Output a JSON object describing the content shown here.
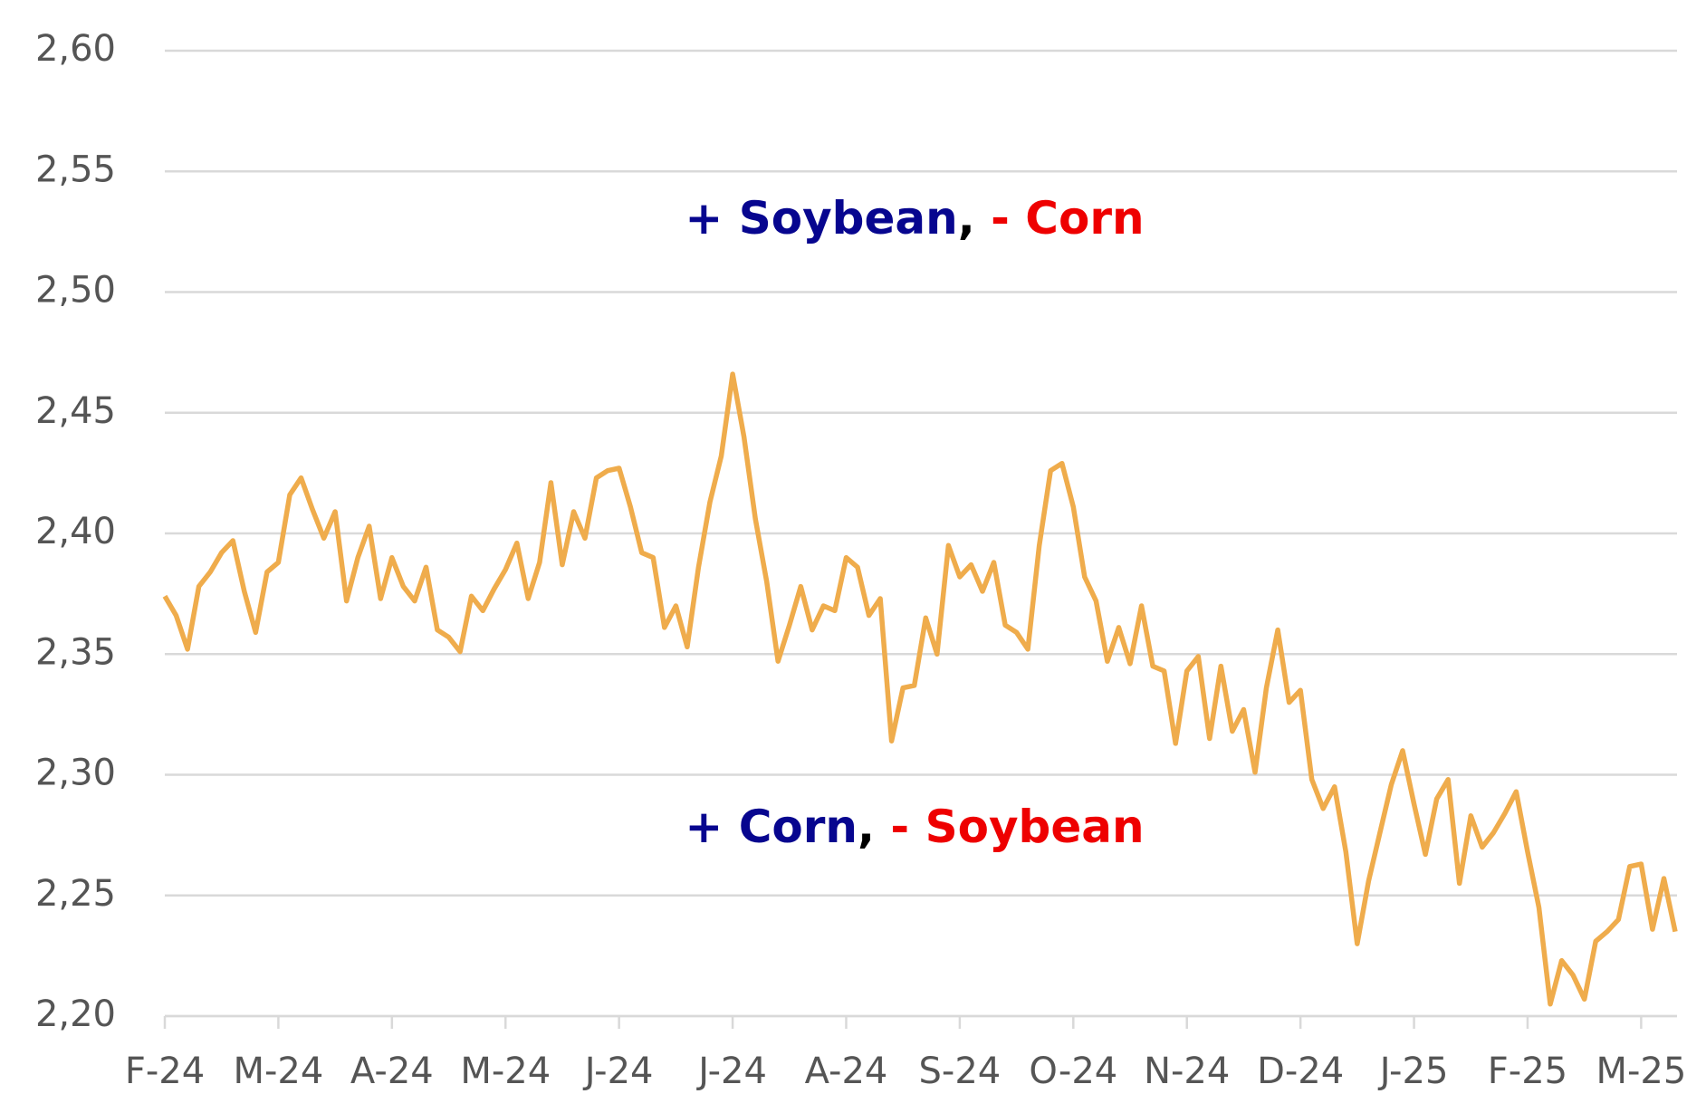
{
  "chart_data": {
    "type": "line",
    "categories": [
      "F-24",
      null,
      null,
      null,
      null,
      null,
      null,
      null,
      null,
      null,
      "M-24",
      null,
      null,
      null,
      null,
      null,
      null,
      null,
      null,
      null,
      "A-24",
      null,
      null,
      null,
      null,
      null,
      null,
      null,
      null,
      null,
      "M-24",
      null,
      null,
      null,
      null,
      null,
      null,
      null,
      null,
      null,
      "J-24",
      null,
      null,
      null,
      null,
      null,
      null,
      null,
      null,
      null,
      "J-24",
      null,
      null,
      null,
      null,
      null,
      null,
      null,
      null,
      null,
      "A-24",
      null,
      null,
      null,
      null,
      null,
      null,
      null,
      null,
      null,
      "S-24",
      null,
      null,
      null,
      null,
      null,
      null,
      null,
      null,
      null,
      "O-24",
      null,
      null,
      null,
      null,
      null,
      null,
      null,
      null,
      null,
      "N-24",
      null,
      null,
      null,
      null,
      null,
      null,
      null,
      null,
      null,
      "D-24",
      null,
      null,
      null,
      null,
      null,
      null,
      null,
      null,
      null,
      "J-25",
      null,
      null,
      null,
      null,
      null,
      null,
      null,
      null,
      null,
      "F-25",
      null,
      null,
      null,
      null,
      null,
      null,
      null,
      null,
      null,
      "M-25",
      null,
      null,
      null
    ],
    "series": [
      {
        "color": "#efac4c",
        "values": [
          2.374,
          2.366,
          2.352,
          2.378,
          2.384,
          2.392,
          2.397,
          2.376,
          2.359,
          2.384,
          2.388,
          2.416,
          2.423,
          2.41,
          2.398,
          2.409,
          2.372,
          2.39,
          2.403,
          2.373,
          2.39,
          2.378,
          2.372,
          2.386,
          2.36,
          2.357,
          2.351,
          2.374,
          2.368,
          2.377,
          2.385,
          2.396,
          2.373,
          2.388,
          2.421,
          2.387,
          2.409,
          2.398,
          2.423,
          2.426,
          2.427,
          2.411,
          2.392,
          2.39,
          2.361,
          2.37,
          2.353,
          2.386,
          2.413,
          2.432,
          2.466,
          2.44,
          2.406,
          2.38,
          2.347,
          2.362,
          2.378,
          2.36,
          2.37,
          2.368,
          2.39,
          2.386,
          2.366,
          2.373,
          2.314,
          2.336,
          2.337,
          2.365,
          2.35,
          2.395,
          2.382,
          2.387,
          2.376,
          2.388,
          2.362,
          2.359,
          2.352,
          2.395,
          2.426,
          2.429,
          2.411,
          2.382,
          2.372,
          2.347,
          2.361,
          2.346,
          2.37,
          2.345,
          2.343,
          2.313,
          2.343,
          2.349,
          2.315,
          2.345,
          2.318,
          2.327,
          2.301,
          2.336,
          2.36,
          2.33,
          2.335,
          2.298,
          2.286,
          2.295,
          2.268,
          2.23,
          2.256,
          2.276,
          2.296,
          2.31,
          2.288,
          2.267,
          2.29,
          2.298,
          2.255,
          2.283,
          2.27,
          2.276,
          2.284,
          2.293,
          2.268,
          2.245,
          2.205,
          2.223,
          2.217,
          2.207,
          2.231,
          2.235,
          2.24,
          2.262,
          2.263,
          2.236,
          2.257,
          2.235
        ]
      }
    ],
    "ylim": [
      2.2,
      2.6
    ],
    "yticks": [
      {
        "value": 2.2,
        "label": "2,20"
      },
      {
        "value": 2.25,
        "label": "2,25"
      },
      {
        "value": 2.3,
        "label": "2,30"
      },
      {
        "value": 2.35,
        "label": "2,35"
      },
      {
        "value": 2.4,
        "label": "2,40"
      },
      {
        "value": 2.45,
        "label": "2,45"
      },
      {
        "value": 2.5,
        "label": "2,50"
      },
      {
        "value": 2.55,
        "label": "2,55"
      },
      {
        "value": 2.6,
        "label": "2,60"
      }
    ],
    "grid": true,
    "annotations": [
      {
        "parts": [
          {
            "text": "+ Soybean",
            "color": "#07068f"
          },
          {
            "text": ",",
            "color": "#000000"
          },
          {
            "text": " - Corn",
            "color": "#ee0000"
          }
        ]
      },
      {
        "parts": [
          {
            "text": "+ Corn",
            "color": "#07068f"
          },
          {
            "text": ",",
            "color": "#000000"
          },
          {
            "text": " - Soybean",
            "color": "#ee0000"
          }
        ]
      }
    ]
  }
}
